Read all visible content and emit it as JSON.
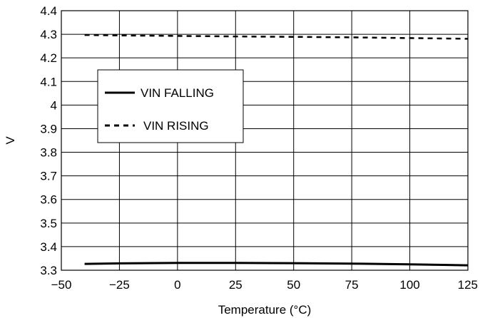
{
  "chart_data": {
    "type": "line",
    "xlabel": "Temperature (°C)",
    "ylabel": "V",
    "xlim": [
      -50,
      125
    ],
    "ylim": [
      3.3,
      4.4
    ],
    "x_ticks": [
      "−50",
      "−25",
      "0",
      "25",
      "50",
      "75",
      "100",
      "125"
    ],
    "y_ticks": [
      "3.3",
      "3.4",
      "3.5",
      "3.6",
      "3.7",
      "3.8",
      "3.9",
      "4",
      "4.1",
      "4.2",
      "4.3",
      "4.4"
    ],
    "grid": true,
    "legend_position": "upper-left",
    "series": [
      {
        "name": "VIN FALLING",
        "style": "solid",
        "x": [
          -40,
          -25,
          0,
          25,
          50,
          75,
          100,
          125
        ],
        "y": [
          3.327,
          3.329,
          3.331,
          3.331,
          3.33,
          3.328,
          3.325,
          3.321
        ]
      },
      {
        "name": "VIN RISING",
        "style": "dashed",
        "x": [
          -40,
          -25,
          0,
          25,
          50,
          75,
          100,
          125
        ],
        "y": [
          4.297,
          4.295,
          4.293,
          4.291,
          4.289,
          4.287,
          4.284,
          4.281
        ]
      }
    ]
  }
}
